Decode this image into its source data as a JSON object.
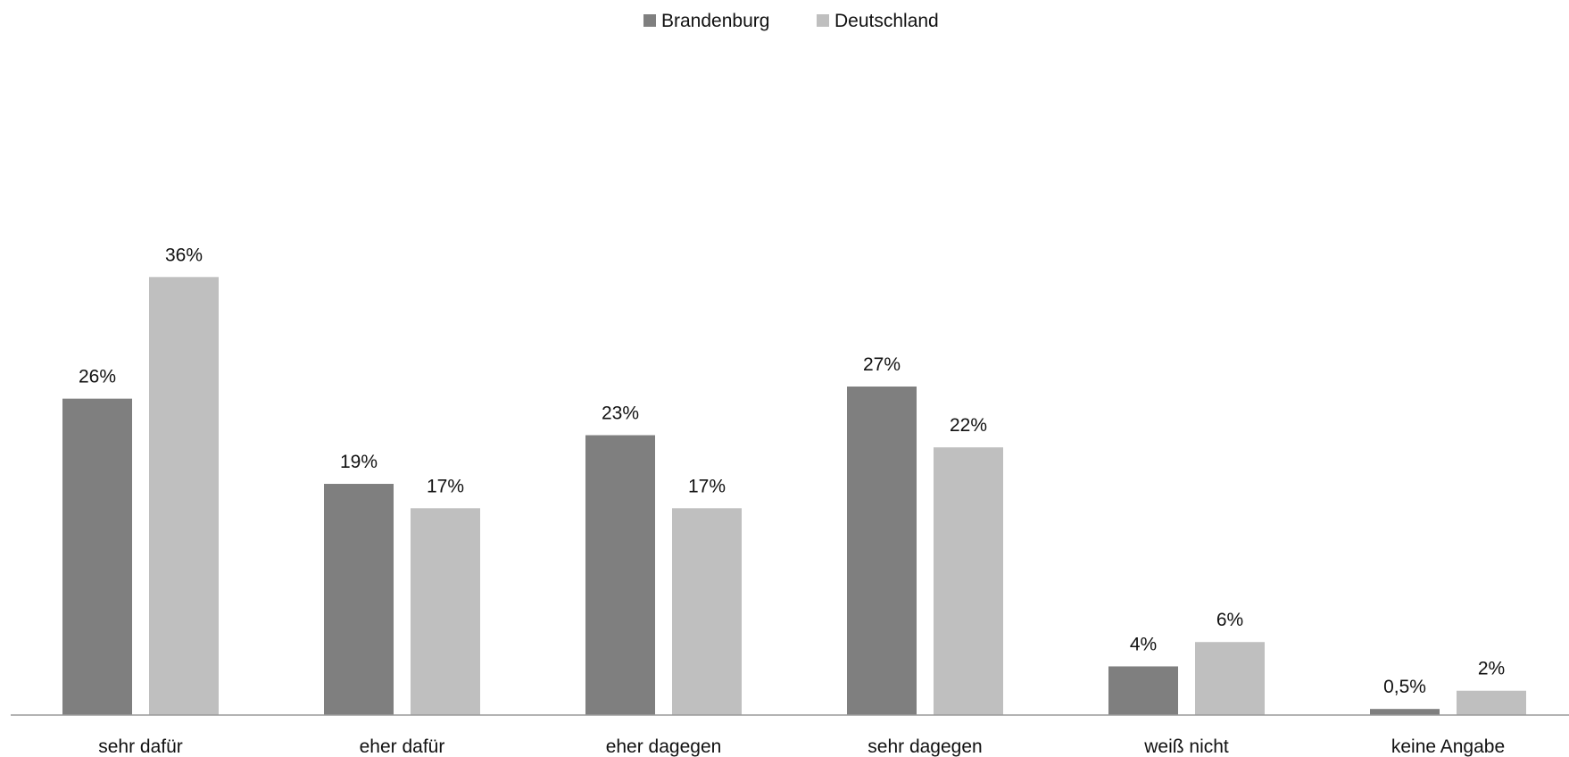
{
  "chart_data": {
    "type": "bar",
    "categories": [
      "sehr dafür",
      "eher dafür",
      "eher dagegen",
      "sehr dagegen",
      "weiß nicht",
      "keine Angabe"
    ],
    "series": [
      {
        "name": "Brandenburg",
        "color": "#7f7f7f",
        "values": [
          26,
          19,
          23,
          27,
          4,
          0.5
        ],
        "labels": [
          "26%",
          "19%",
          "23%",
          "27%",
          "4%",
          "0,5%"
        ]
      },
      {
        "name": "Deutschland",
        "color": "#bfbfbf",
        "values": [
          36,
          17,
          17,
          22,
          6,
          2
        ],
        "labels": [
          "36%",
          "17%",
          "17%",
          "22%",
          "6%",
          "2%"
        ]
      }
    ],
    "title": "",
    "xlabel": "",
    "ylabel": "",
    "ylim": [
      0,
      40
    ],
    "grid": false,
    "legend_position": "top-center"
  }
}
